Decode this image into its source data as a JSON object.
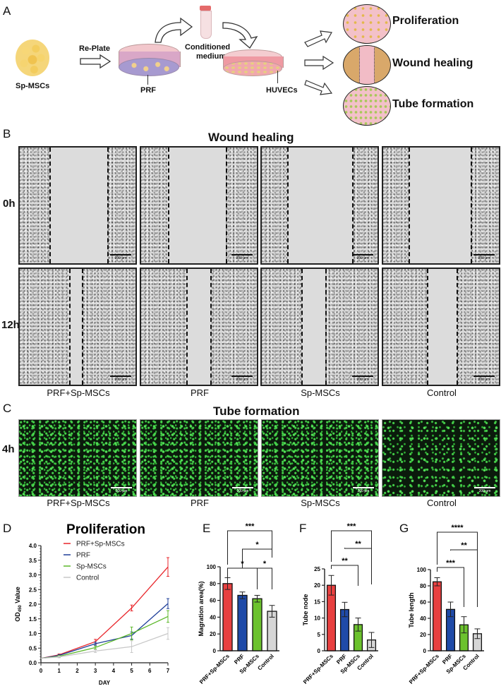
{
  "panels": {
    "A": {
      "label": "A",
      "source_cells": "Sp-MSCs",
      "replate_label": "Re-Plate",
      "prf_label": "PRF",
      "conditioned_label_1": "Conditioned",
      "conditioned_label_2": "medium",
      "huvec_label": "HUVECs",
      "outcomes": [
        "Proliferation",
        "Wound healing",
        "Tube formation"
      ]
    },
    "B": {
      "label": "B",
      "title": "Wound healing",
      "rows": [
        "0h",
        "12h"
      ],
      "groups": [
        "PRF+Sp-MSCs",
        "PRF",
        "Sp-MSCs",
        "Control"
      ],
      "scale_bar": "200 μm"
    },
    "C": {
      "label": "C",
      "title": "Tube formation",
      "rows": [
        "4h"
      ],
      "groups": [
        "PRF+Sp-MSCs",
        "PRF",
        "Sp-MSCs",
        "Control"
      ],
      "scale_bar": "200 μm"
    },
    "D": {
      "label": "D"
    },
    "E": {
      "label": "E"
    },
    "F": {
      "label": "F"
    },
    "G": {
      "label": "G"
    }
  },
  "colors": {
    "prf_sp_mscs": "#e8262b",
    "prf": "#1f3f99",
    "sp_mscs": "#5cb82a",
    "control": "#c8c8c8",
    "bar_prf_sp_mscs": "#e84040",
    "bar_prf": "#1f4aa8",
    "bar_sp_mscs": "#6cc22e",
    "bar_control": "#d6d6d6"
  },
  "chart_data": [
    {
      "id": "D",
      "type": "line",
      "title": "Proliferation",
      "xlabel": "DAY",
      "ylabel": "OD450 Value",
      "x": [
        0,
        1,
        3,
        5,
        7
      ],
      "xlim": [
        0,
        7
      ],
      "xticks": [
        0,
        1,
        2,
        3,
        4,
        5,
        6,
        7
      ],
      "ylim": [
        0,
        4.0
      ],
      "yticks": [
        0.0,
        0.5,
        1.0,
        1.5,
        2.0,
        2.5,
        3.0,
        3.5,
        4.0
      ],
      "legend_position": "upper left",
      "series": [
        {
          "name": "PRF+Sp-MSCs",
          "values": [
            0.15,
            0.27,
            0.72,
            1.87,
            3.27
          ],
          "errors": [
            0,
            0.03,
            0.08,
            0.1,
            0.32
          ]
        },
        {
          "name": "PRF",
          "values": [
            0.15,
            0.25,
            0.65,
            0.93,
            2.02
          ],
          "errors": [
            0,
            0.03,
            0.05,
            0.12,
            0.17
          ]
        },
        {
          "name": "Sp-MSCs",
          "values": [
            0.15,
            0.22,
            0.52,
            1.0,
            1.58
          ],
          "errors": [
            0,
            0.03,
            0.05,
            0.22,
            0.2
          ]
        },
        {
          "name": "Control",
          "values": [
            0.15,
            0.2,
            0.4,
            0.55,
            1.0
          ],
          "errors": [
            0,
            0.03,
            0.05,
            0.2,
            0.2
          ]
        }
      ]
    },
    {
      "id": "E",
      "type": "bar",
      "title": "",
      "ylabel": "Magration area(%)",
      "categories": [
        "PRF+Sp-MSCs",
        "PRF",
        "Sp-MSCs",
        "Control"
      ],
      "values": [
        80,
        66,
        62,
        47
      ],
      "errors": [
        7,
        4,
        4,
        7
      ],
      "ylim": [
        0,
        100
      ],
      "yticks": [
        0,
        20,
        40,
        60,
        80,
        100
      ],
      "significance": [
        {
          "from": 0,
          "to": 3,
          "label": "***"
        },
        {
          "from": 1,
          "to": 3,
          "label": "*"
        },
        {
          "from": 0,
          "to": 2,
          "label": "*"
        },
        {
          "from": 2,
          "to": 3,
          "label": "*"
        }
      ]
    },
    {
      "id": "F",
      "type": "bar",
      "title": "",
      "ylabel": "Tube node",
      "categories": [
        "PRF+Sp-MSCs",
        "PRF",
        "Sp-MSCs",
        "Control"
      ],
      "values": [
        20,
        12.6,
        8,
        3.3
      ],
      "errors": [
        3,
        2.2,
        2,
        2.3
      ],
      "ylim": [
        0,
        25
      ],
      "yticks": [
        0,
        5,
        10,
        15,
        20,
        25
      ],
      "significance": [
        {
          "from": 0,
          "to": 3,
          "label": "***"
        },
        {
          "from": 1,
          "to": 3,
          "label": "**"
        },
        {
          "from": 0,
          "to": 2,
          "label": "**"
        }
      ]
    },
    {
      "id": "G",
      "type": "bar",
      "title": "",
      "ylabel": "Tube length",
      "categories": [
        "PRF+Sp-MSCs",
        "PRF",
        "Sp-MSCs",
        "Control"
      ],
      "values": [
        85,
        51,
        32,
        21
      ],
      "errors": [
        5,
        9,
        10,
        6
      ],
      "ylim": [
        0,
        100
      ],
      "yticks": [
        0,
        20,
        40,
        60,
        80,
        100
      ],
      "significance": [
        {
          "from": 0,
          "to": 3,
          "label": "****"
        },
        {
          "from": 1,
          "to": 3,
          "label": "**"
        },
        {
          "from": 0,
          "to": 2,
          "label": "***"
        }
      ]
    }
  ]
}
